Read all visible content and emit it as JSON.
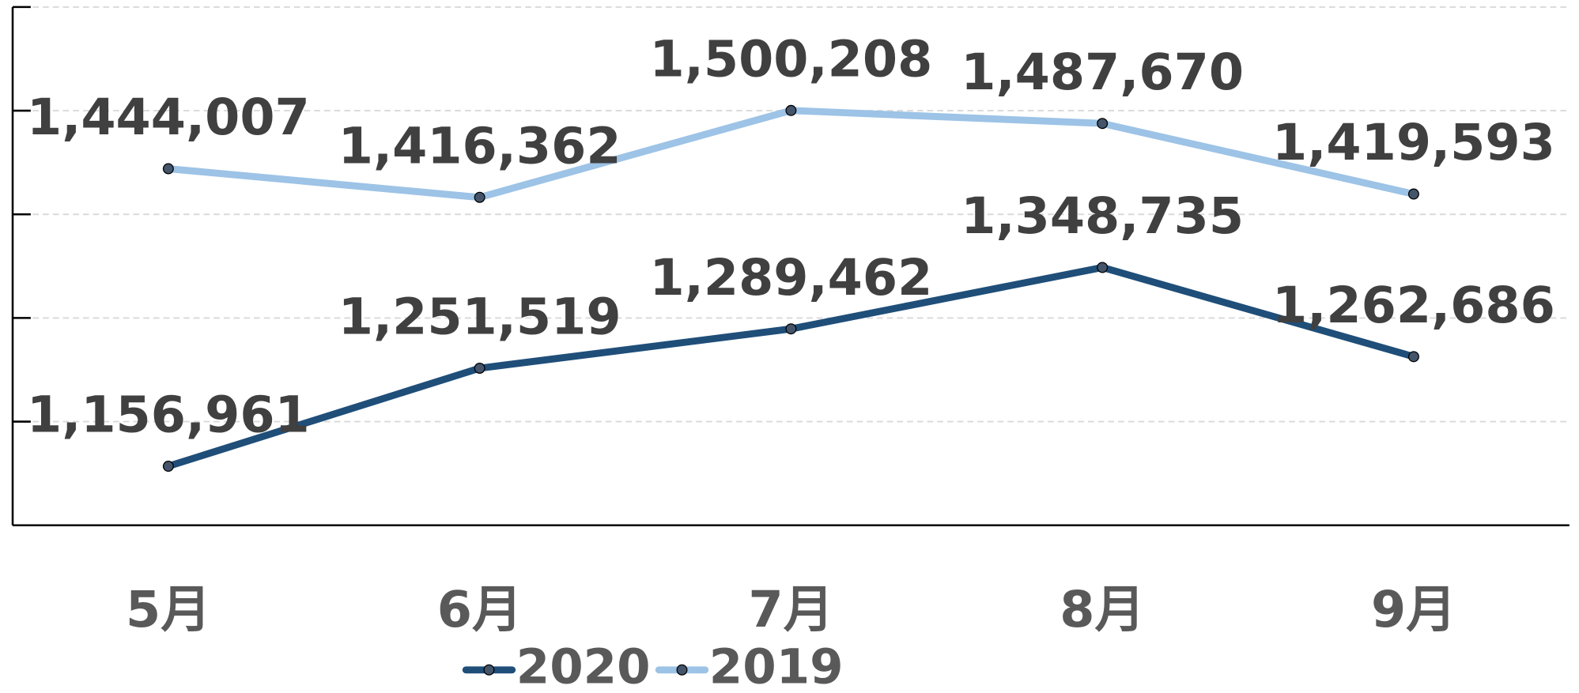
{
  "chart_data": {
    "type": "line",
    "categories": [
      "5月",
      "6月",
      "7月",
      "8月",
      "9月"
    ],
    "series": [
      {
        "name": "2020",
        "color": "#1f4e79",
        "values": [
          1156961,
          1251519,
          1289462,
          1348735,
          1262686
        ],
        "value_labels": [
          "1,156,961",
          "1,251,519",
          "1,289,462",
          "1,348,735",
          "1,262,686"
        ]
      },
      {
        "name": "2019",
        "color": "#9dc3e6",
        "values": [
          1444007,
          1416362,
          1500208,
          1487670,
          1419593
        ],
        "value_labels": [
          "1,444,007",
          "1,416,362",
          "1,500,208",
          "1,487,670",
          "1,419,593"
        ]
      }
    ],
    "ylim": [
      1100000,
      1600000
    ],
    "yticks": [
      1100000,
      1200000,
      1300000,
      1400000,
      1500000,
      1600000
    ],
    "grid": true,
    "legend": "bottom"
  }
}
